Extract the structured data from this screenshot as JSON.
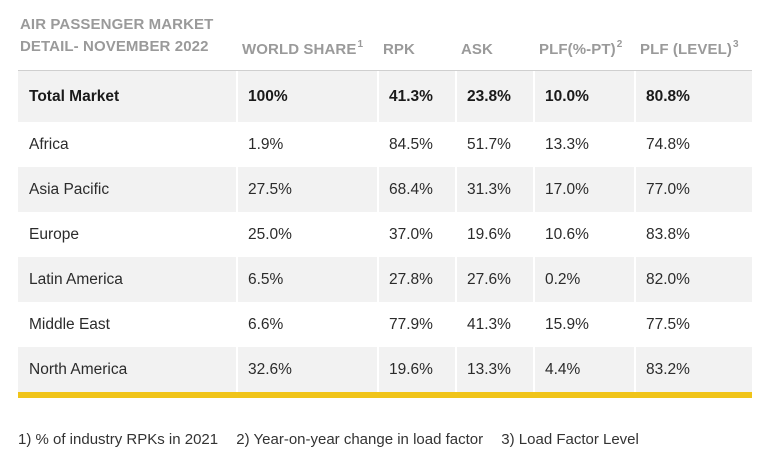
{
  "table": {
    "title_line1": "AIR PASSENGER MARKET",
    "title_line2": "DETAIL- NOVEMBER 2022",
    "columns": [
      {
        "label": "WORLD SHARE",
        "sup": "1"
      },
      {
        "label": "RPK",
        "sup": ""
      },
      {
        "label": "ASK",
        "sup": ""
      },
      {
        "label": "PLF(%-PT)",
        "sup": "2"
      },
      {
        "label": "PLF (LEVEL)",
        "sup": "3"
      }
    ],
    "rows": [
      {
        "region": "Total Market",
        "world_share": "100%",
        "rpk": "41.3%",
        "ask": "23.8%",
        "plf_pt": "10.0%",
        "plf_level": "80.8%"
      },
      {
        "region": "Africa",
        "world_share": "1.9%",
        "rpk": "84.5%",
        "ask": "51.7%",
        "plf_pt": "13.3%",
        "plf_level": "74.8%"
      },
      {
        "region": "Asia Pacific",
        "world_share": "27.5%",
        "rpk": "68.4%",
        "ask": "31.3%",
        "plf_pt": "17.0%",
        "plf_level": "77.0%"
      },
      {
        "region": "Europe",
        "world_share": "25.0%",
        "rpk": "37.0%",
        "ask": "19.6%",
        "plf_pt": "10.6%",
        "plf_level": "83.8%"
      },
      {
        "region": "Latin America",
        "world_share": "6.5%",
        "rpk": "27.8%",
        "ask": "27.6%",
        "plf_pt": "0.2%",
        "plf_level": "82.0%"
      },
      {
        "region": "Middle East",
        "world_share": "6.6%",
        "rpk": "77.9%",
        "ask": "41.3%",
        "plf_pt": "15.9%",
        "plf_level": "77.5%"
      },
      {
        "region": "North America",
        "world_share": "32.6%",
        "rpk": "19.6%",
        "ask": "13.3%",
        "plf_pt": "4.4%",
        "plf_level": "83.2%"
      }
    ]
  },
  "footnotes": [
    "1) % of industry RPKs in 2021",
    "2) Year-on-year change in load factor",
    "3) Load Factor Level"
  ],
  "colors": {
    "accent_bar": "#f0c419",
    "row_shade": "#f2f2f2",
    "header_text": "#9a9a9a"
  }
}
